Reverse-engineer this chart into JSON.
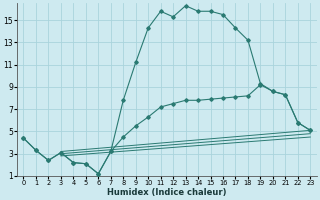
{
  "xlabel": "Humidex (Indice chaleur)",
  "bg_color": "#ceeaf0",
  "grid_color": "#aad4dc",
  "line_color": "#2a7a72",
  "xlim": [
    -0.5,
    23.5
  ],
  "ylim": [
    1,
    16.5
  ],
  "xticks": [
    0,
    1,
    2,
    3,
    4,
    5,
    6,
    7,
    8,
    9,
    10,
    11,
    12,
    13,
    14,
    15,
    16,
    17,
    18,
    19,
    20,
    21,
    22,
    23
  ],
  "yticks": [
    1,
    3,
    5,
    7,
    9,
    11,
    13,
    15
  ],
  "series1_x": [
    0,
    1,
    2,
    3,
    4,
    5,
    6,
    7,
    8,
    9,
    10,
    11,
    12,
    13,
    14,
    15,
    16,
    17,
    18,
    19,
    20,
    21,
    22,
    23
  ],
  "series1_y": [
    4.4,
    3.3,
    2.4,
    3.1,
    2.2,
    2.1,
    1.2,
    3.2,
    7.8,
    11.2,
    14.3,
    15.8,
    15.3,
    16.3,
    15.8,
    15.8,
    15.5,
    14.3,
    13.2,
    9.3,
    8.6,
    8.3,
    5.8,
    5.1
  ],
  "series2_x": [
    0,
    1,
    2,
    3,
    4,
    5,
    6,
    7,
    8,
    9,
    10,
    11,
    12,
    13,
    14,
    15,
    16,
    17,
    18,
    19,
    20,
    21,
    22,
    23
  ],
  "series2_y": [
    4.4,
    3.3,
    2.4,
    3.1,
    2.2,
    2.1,
    1.2,
    3.2,
    4.5,
    5.5,
    6.3,
    7.2,
    7.5,
    7.8,
    7.8,
    7.9,
    8.0,
    8.1,
    8.2,
    9.2,
    8.6,
    8.3,
    5.8,
    5.1
  ],
  "line3_x": [
    3,
    23
  ],
  "line3_y": [
    3.2,
    5.1
  ],
  "line4_x": [
    3,
    23
  ],
  "line4_y": [
    3.0,
    4.8
  ],
  "line5_x": [
    3,
    23
  ],
  "line5_y": [
    2.8,
    4.5
  ]
}
